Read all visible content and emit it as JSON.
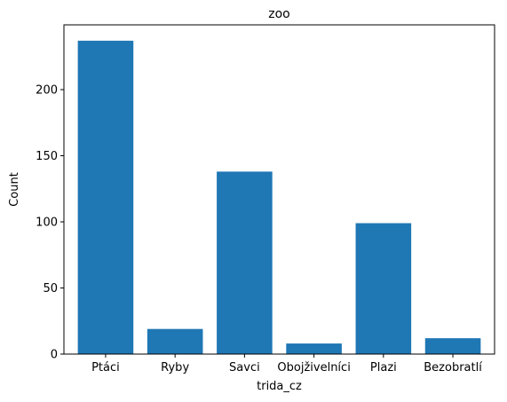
{
  "chart_data": {
    "type": "bar",
    "title": "zoo",
    "xlabel": "trida_cz",
    "ylabel": "Count",
    "categories": [
      "Ptáci",
      "Ryby",
      "Savci",
      "Obojživelníci",
      "Plazi",
      "Bezobratlí"
    ],
    "values": [
      237,
      19,
      138,
      8,
      99,
      12
    ],
    "ylim": [
      0,
      249
    ],
    "yticks": [
      0,
      50,
      100,
      150,
      200
    ],
    "grid": false,
    "legend": "none",
    "bar_color": "#1f77b4"
  }
}
